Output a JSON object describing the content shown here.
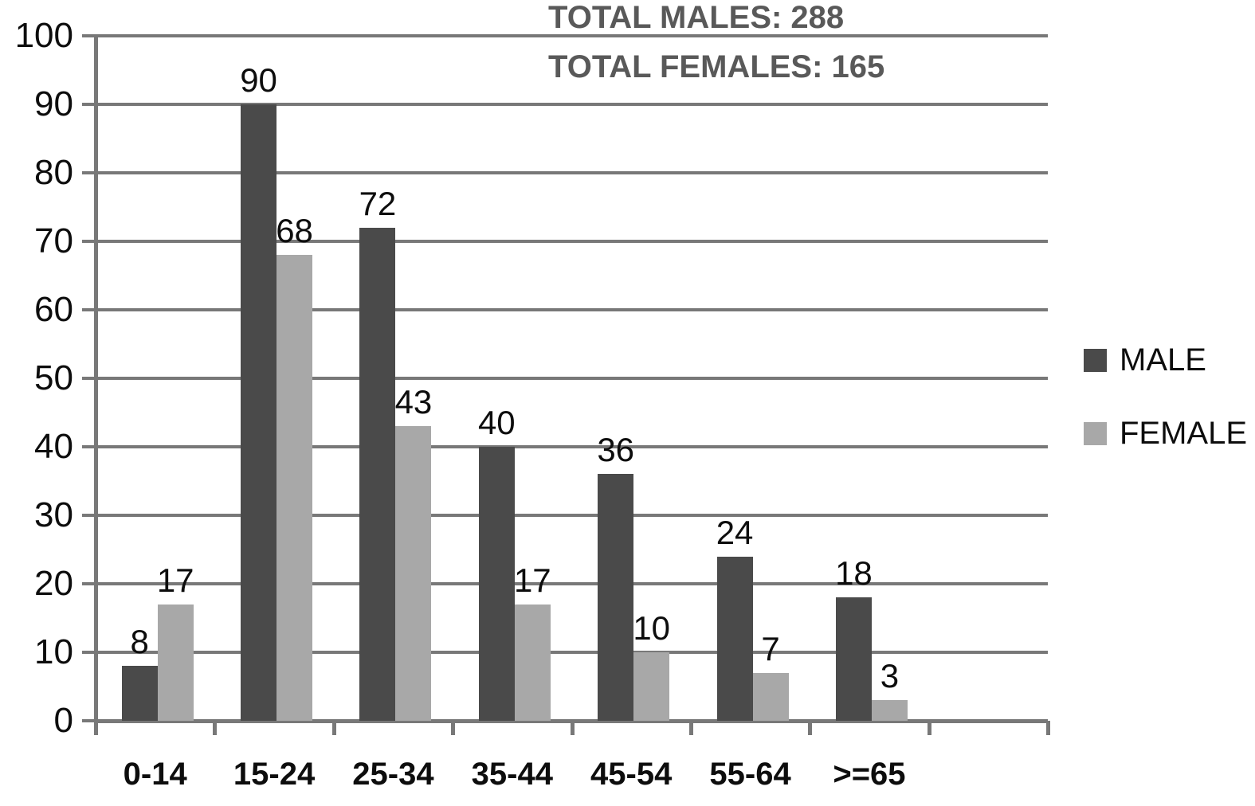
{
  "annotations": {
    "total_males": "TOTAL MALES: 288",
    "total_females": "TOTAL FEMALES: 165"
  },
  "legend": [
    {
      "label": "MALE",
      "color": "#4a4a4a"
    },
    {
      "label": "FEMALE",
      "color": "#a8a8a8"
    }
  ],
  "colors": {
    "male_bar": "#4a4a4a",
    "female_bar": "#a8a8a8",
    "grid": "#787878",
    "title_text": "#595959",
    "label_text": "#0d0d0d",
    "background": "#ffffff"
  },
  "chart_data": {
    "type": "bar",
    "title": "",
    "xlabel": "",
    "ylabel": "",
    "categories": [
      "0-14",
      "15-24",
      "25-34",
      "35-44",
      "45-54",
      "55-64",
      ">=65"
    ],
    "series": [
      {
        "name": "MALE",
        "color": "#4a4a4a",
        "values": [
          8,
          90,
          72,
          40,
          36,
          24,
          18
        ]
      },
      {
        "name": "FEMALE",
        "color": "#a8a8a8",
        "values": [
          17,
          68,
          43,
          17,
          10,
          7,
          3
        ]
      }
    ],
    "totals": {
      "MALE": 288,
      "FEMALE": 165
    },
    "ylim": [
      0,
      100
    ],
    "yticks": [
      0,
      10,
      20,
      30,
      40,
      50,
      60,
      70,
      80,
      90,
      100
    ],
    "grid": true,
    "data_labels": true,
    "legend_position": "right",
    "annotations": [
      "TOTAL MALES: 288",
      "TOTAL FEMALES: 165"
    ]
  }
}
